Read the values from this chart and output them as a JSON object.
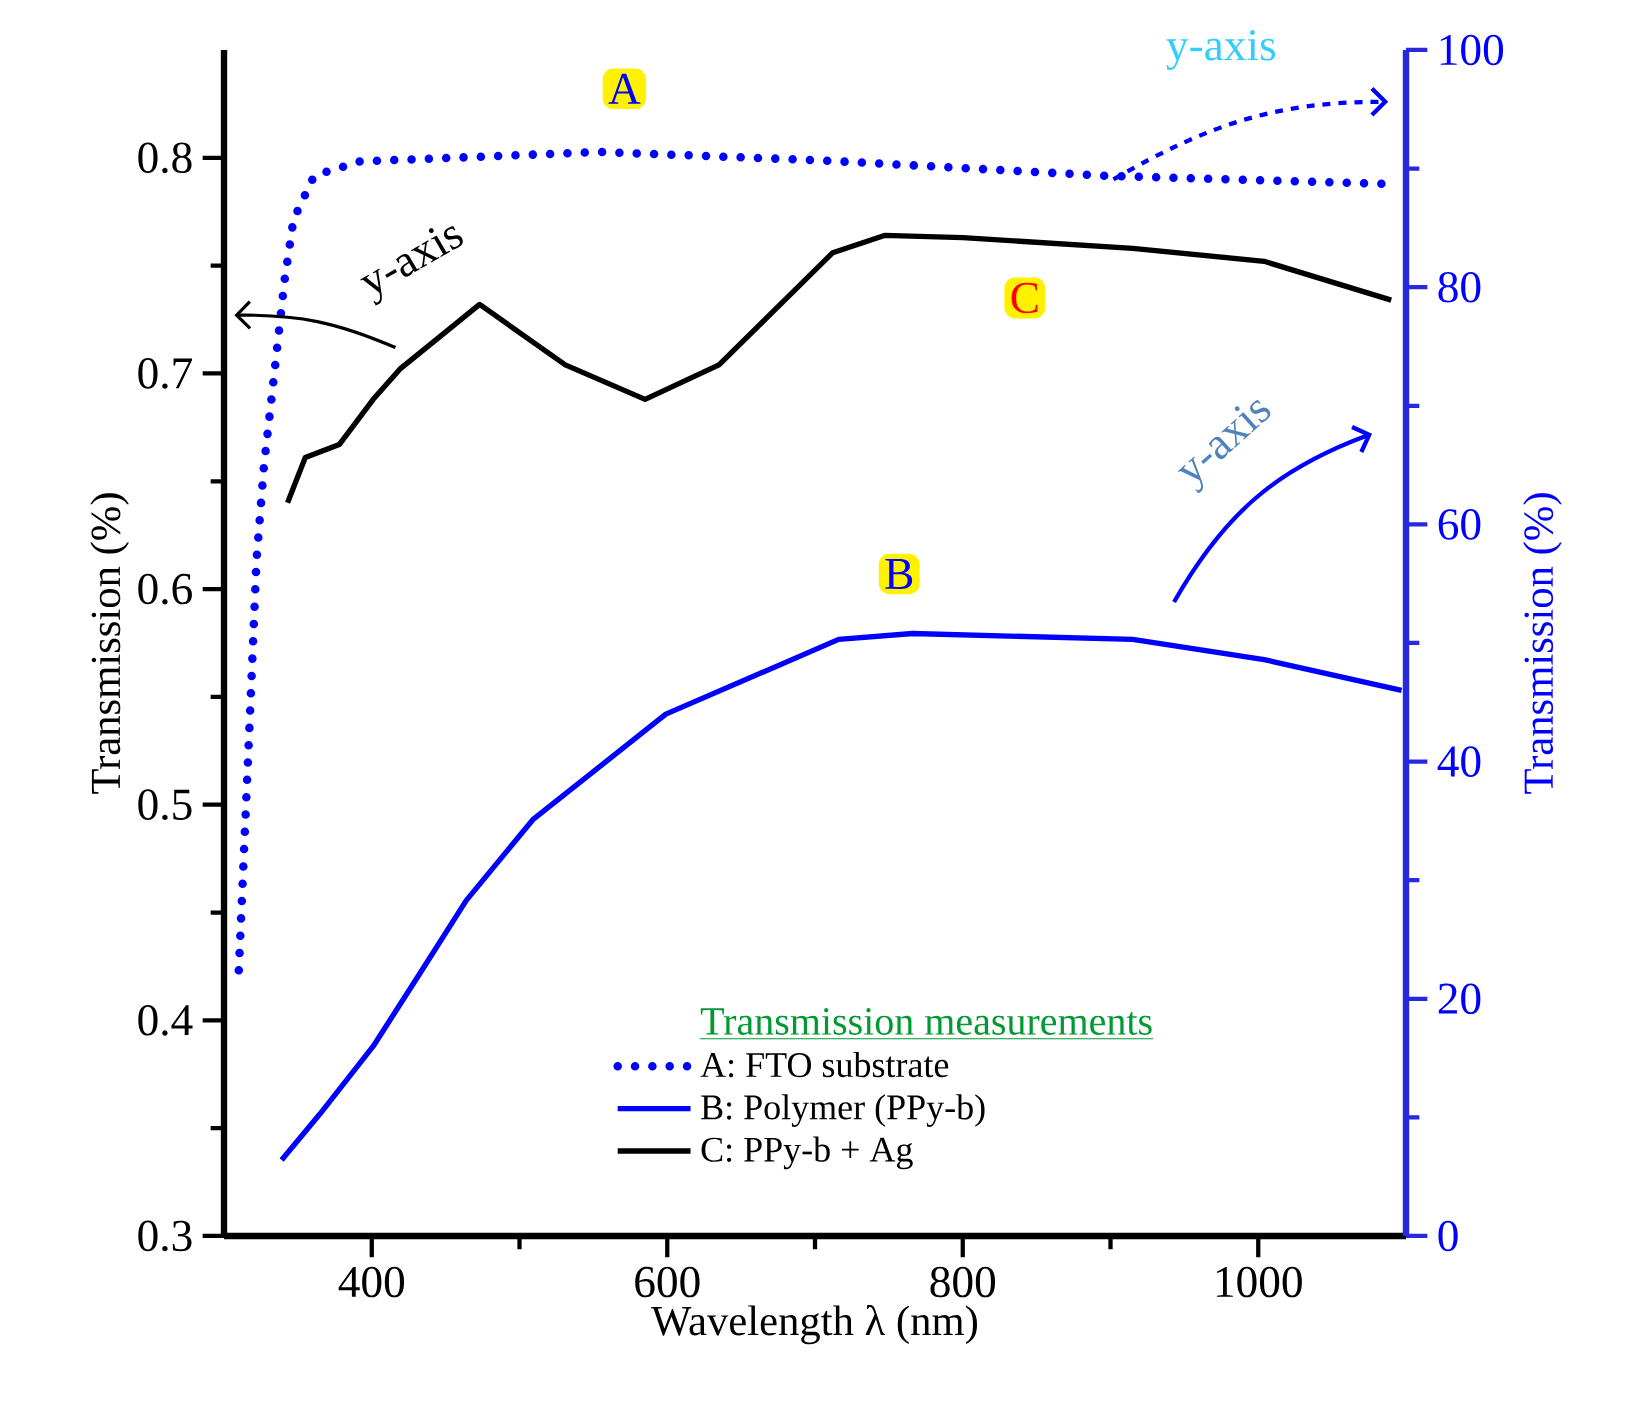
{
  "chart_data": {
    "type": "line",
    "xlabel": "Wavelength λ  (nm)",
    "ylabel": "Transmission  (%)",
    "y2label": "Transmission  (%)",
    "legend_title": "Transmission measurements",
    "xlim": [
      300,
      1100
    ],
    "xticks": [
      400,
      600,
      800,
      1000
    ],
    "ylim": [
      0.3,
      0.85
    ],
    "yticks": [
      0.3,
      0.4,
      0.5,
      0.6,
      0.7,
      0.8
    ],
    "y2lim": [
      0,
      100
    ],
    "y2ticks": [
      0,
      20,
      40,
      60,
      80,
      100
    ],
    "legend": "bottom",
    "series": [
      {
        "name": "A: FTO substrate",
        "color": "#0000ff",
        "axis": "y2",
        "line_style": "dotted",
        "x": [
          310,
          318,
          322,
          327,
          334,
          341,
          347,
          361,
          392,
          554,
          703,
          896,
          1090
        ],
        "values": [
          22.4,
          45.2,
          57.0,
          64.9,
          72.7,
          80.6,
          85.7,
          89.4,
          90.6,
          91.4,
          90.7,
          89.4,
          88.7
        ]
      },
      {
        "name": "B: Polymer (PPy-b)",
        "color": "#0000ff",
        "axis": "y2",
        "line_style": "solid",
        "x": [
          339,
          365,
          401,
          436,
          464,
          509,
          599,
          716,
          766,
          915,
          1004,
          1097
        ],
        "values": [
          6.4,
          10.3,
          16.0,
          22.8,
          28.3,
          35.1,
          44.0,
          50.3,
          50.8,
          50.3,
          48.6,
          46.0
        ]
      },
      {
        "name": "C: PPy-b + Ag",
        "color": "#000000",
        "axis": "y",
        "line_style": "solid",
        "x": [
          343,
          355,
          378,
          401,
          419,
          473,
          531,
          585,
          635,
          712,
          747,
          800,
          915,
          1004,
          1090
        ],
        "values": [
          0.64,
          0.661,
          0.667,
          0.688,
          0.702,
          0.732,
          0.704,
          0.688,
          0.704,
          0.756,
          0.764,
          0.763,
          0.758,
          0.752,
          0.734
        ]
      }
    ],
    "annotations": [
      "A",
      "B",
      "C",
      "y-axis",
      "y-axis",
      "y-axis"
    ]
  }
}
